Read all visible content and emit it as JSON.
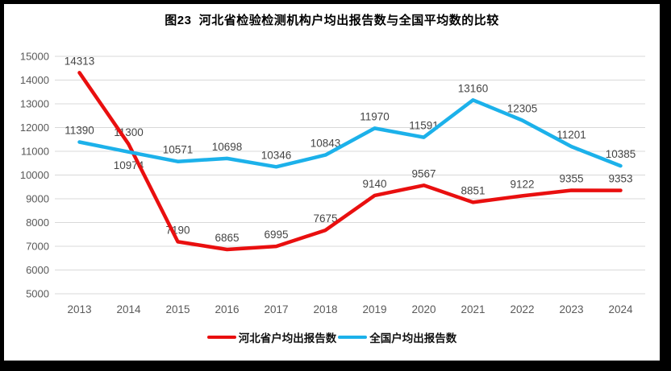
{
  "chart_data": {
    "type": "line",
    "title": "图23  河北省检验检测机构户均出报告数与全国平均数的比较",
    "categories": [
      "2013",
      "2014",
      "2015",
      "2016",
      "2017",
      "2018",
      "2019",
      "2020",
      "2021",
      "2022",
      "2023",
      "2024"
    ],
    "series": [
      {
        "name": "河北省户均出报告数",
        "color": "#e90f0f",
        "values": [
          14313,
          11300,
          7190,
          6865,
          6995,
          7675,
          9140,
          9567,
          8851,
          9122,
          9355,
          9353
        ],
        "label_side": [
          "above",
          "above",
          "above",
          "above",
          "above",
          "above",
          "above",
          "above",
          "above",
          "above",
          "above",
          "above"
        ]
      },
      {
        "name": "全国户均出报告数",
        "color": "#1cb1ea",
        "values": [
          11390,
          10974,
          10571,
          10698,
          10346,
          10843,
          11970,
          11591,
          13160,
          12305,
          11201,
          10385
        ],
        "label_side": [
          "above",
          "below",
          "above",
          "above",
          "above",
          "above",
          "above",
          "above",
          "above",
          "above",
          "above",
          "above"
        ]
      }
    ],
    "ylim": [
      5000,
      15000
    ],
    "ytick_step": 1000,
    "yticks": [
      5000,
      6000,
      7000,
      8000,
      9000,
      10000,
      11000,
      12000,
      13000,
      14000,
      15000
    ],
    "grid": true,
    "legend_position": "bottom",
    "colors": {
      "gridline": "#d9d9d9",
      "axis_text": "#595959",
      "data_label_text": "#444444",
      "frame_border": "#000000",
      "background": "#ffffff"
    }
  }
}
